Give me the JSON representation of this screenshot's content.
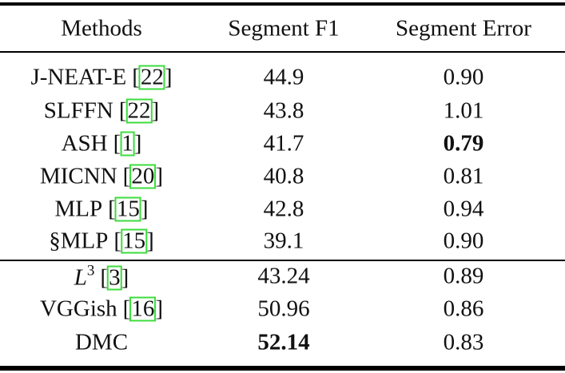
{
  "table": {
    "header": [
      "Methods",
      "Segment F1",
      "Segment Error"
    ],
    "rows": [
      {
        "method": "J-NEAT-E",
        "citation": {
          "open": "[",
          "ref": "22",
          "close": "]"
        },
        "f1": "44.9",
        "error": "0.90"
      },
      {
        "method": "SLFFN",
        "citation": {
          "open": "[",
          "ref": "22",
          "close": "]"
        },
        "f1": "43.8",
        "error": "1.01"
      },
      {
        "method": "ASH",
        "citation": {
          "open": "[",
          "ref": "1",
          "close": "]"
        },
        "f1": "41.7",
        "error": "0.79",
        "bold": [
          "error"
        ]
      },
      {
        "method": "MICNN",
        "citation": {
          "open": "[",
          "ref": "20",
          "close": "]"
        },
        "f1": "40.8",
        "error": "0.81"
      },
      {
        "method": "MLP",
        "citation": {
          "open": "[",
          "ref": "15",
          "close": "]"
        },
        "f1": "42.8",
        "error": "0.94"
      },
      {
        "method": "§MLP",
        "citation": {
          "open": "[",
          "ref": "15",
          "close": "]"
        },
        "f1": "39.1",
        "error": "0.90"
      },
      {
        "method": "L",
        "method_sup": "3",
        "italic": true,
        "citation": {
          "open": "[",
          "ref": "3",
          "close": "]"
        },
        "f1": "43.24",
        "error": "0.89"
      },
      {
        "method": "VGGish",
        "citation": {
          "open": "[",
          "ref": "16",
          "close": "]"
        },
        "f1": "50.96",
        "error": "0.86"
      },
      {
        "method": "DMC",
        "f1": "52.14",
        "error": "0.83",
        "bold": [
          "f1"
        ]
      }
    ]
  }
}
